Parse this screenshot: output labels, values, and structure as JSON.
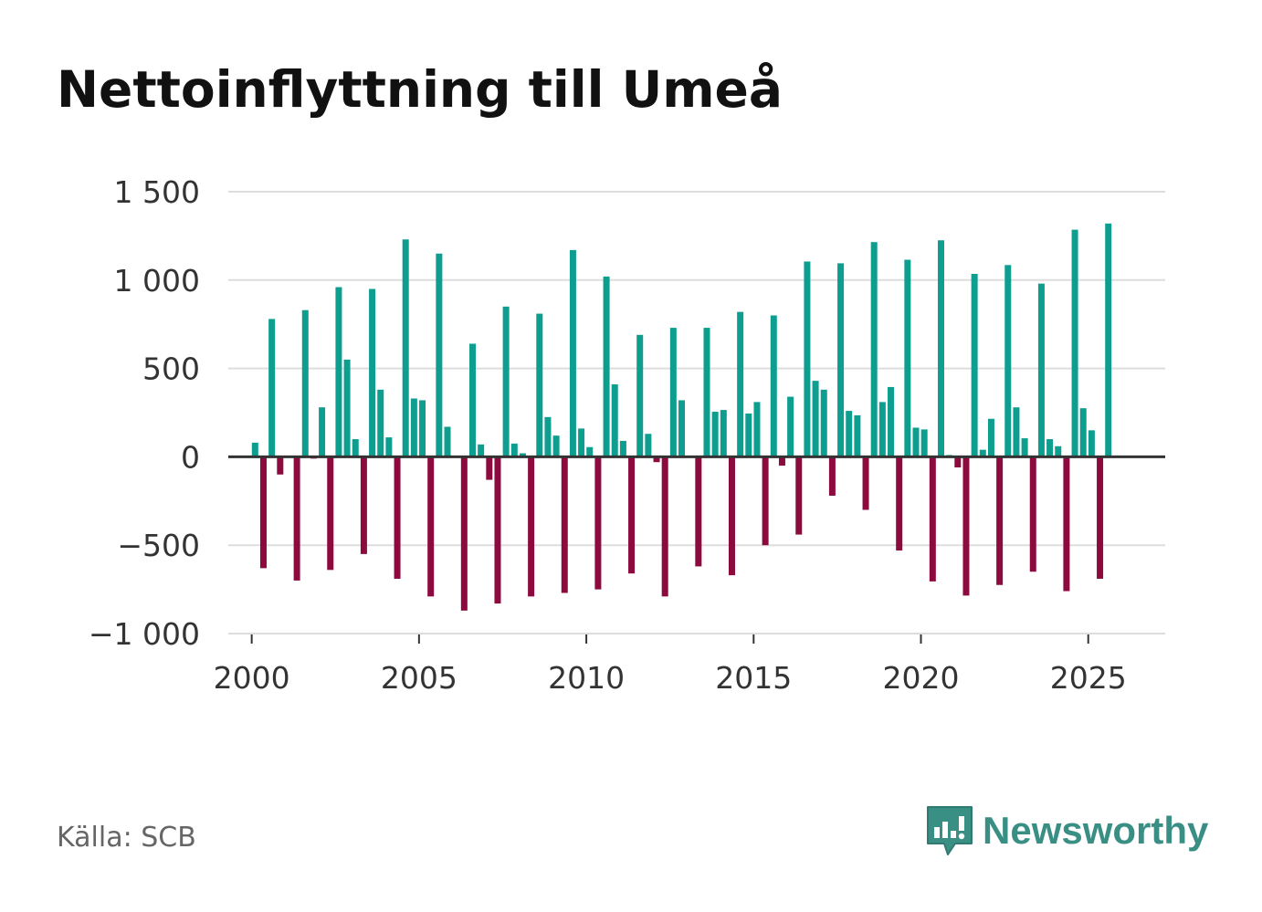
{
  "title": "Nettoinflyttning till Umeå",
  "source": "Källa: SCB",
  "brand": {
    "name": "Newsworthy",
    "icon": "newsworthy-logo-icon"
  },
  "colors": {
    "positive": "#0e9e8f",
    "negative": "#8d0a3f",
    "grid": "#dddddd",
    "zero": "#333333",
    "brand": "#3a8f85"
  },
  "chart_data": {
    "type": "bar",
    "title": "Nettoinflyttning till Umeå",
    "xlabel": "",
    "ylabel": "",
    "ylim": [
      -1000,
      1500
    ],
    "xlim": [
      1999.3,
      2027.3
    ],
    "yticks": [
      -1000,
      -500,
      0,
      500,
      1000,
      1500
    ],
    "ytick_labels": [
      "−1 000",
      "−500",
      "0",
      "500",
      "1 000",
      "1 500"
    ],
    "xticks": [
      2000,
      2005,
      2010,
      2015,
      2020,
      2025
    ],
    "xtick_labels": [
      "2000",
      "2005",
      "2010",
      "2015",
      "2020",
      "2025"
    ],
    "x": [
      2000.1,
      2000.35,
      2000.6,
      2000.85,
      2001.1,
      2001.35,
      2001.6,
      2001.85,
      2002.1,
      2002.35,
      2002.6,
      2002.85,
      2003.1,
      2003.35,
      2003.6,
      2003.85,
      2004.1,
      2004.35,
      2004.6,
      2004.85,
      2005.1,
      2005.35,
      2005.6,
      2005.85,
      2006.1,
      2006.35,
      2006.6,
      2006.85,
      2007.1,
      2007.35,
      2007.6,
      2007.85,
      2008.1,
      2008.35,
      2008.6,
      2008.85,
      2009.1,
      2009.35,
      2009.6,
      2009.85,
      2010.1,
      2010.35,
      2010.6,
      2010.85,
      2011.1,
      2011.35,
      2011.6,
      2011.85,
      2012.1,
      2012.35,
      2012.6,
      2012.85,
      2013.1,
      2013.35,
      2013.6,
      2013.85,
      2014.1,
      2014.35,
      2014.6,
      2014.85,
      2015.1,
      2015.35,
      2015.6,
      2015.85,
      2016.1,
      2016.35,
      2016.6,
      2016.85,
      2017.1,
      2017.35,
      2017.6,
      2017.85,
      2018.1,
      2018.35,
      2018.6,
      2018.85,
      2019.1,
      2019.35,
      2019.6,
      2019.85,
      2020.1,
      2020.35,
      2020.6,
      2020.85,
      2021.1,
      2021.35,
      2021.6,
      2021.85,
      2022.1,
      2022.35,
      2022.6,
      2022.85,
      2023.1,
      2023.35,
      2023.6,
      2023.85,
      2024.1,
      2024.35,
      2024.6,
      2024.85,
      2025.1,
      2025.35,
      2025.6
    ],
    "values": [
      80,
      -630,
      780,
      -100,
      0,
      -700,
      830,
      -10,
      280,
      -640,
      960,
      550,
      100,
      -550,
      950,
      380,
      110,
      -690,
      1230,
      330,
      320,
      -790,
      1150,
      170,
      0,
      -870,
      640,
      70,
      -130,
      -830,
      850,
      75,
      20,
      -790,
      810,
      225,
      120,
      -770,
      1170,
      160,
      55,
      -750,
      1020,
      410,
      90,
      -660,
      690,
      130,
      -30,
      -790,
      730,
      320,
      0,
      -620,
      730,
      255,
      265,
      -670,
      820,
      245,
      310,
      -500,
      800,
      -50,
      340,
      -440,
      1105,
      430,
      380,
      -220,
      1095,
      260,
      235,
      -300,
      1215,
      310,
      395,
      -530,
      1115,
      165,
      155,
      -705,
      1225,
      10,
      -60,
      -785,
      1035,
      40,
      215,
      -725,
      1085,
      280,
      105,
      -650,
      980,
      100,
      60,
      -760,
      1285,
      275,
      150,
      -690,
      1320
    ]
  }
}
